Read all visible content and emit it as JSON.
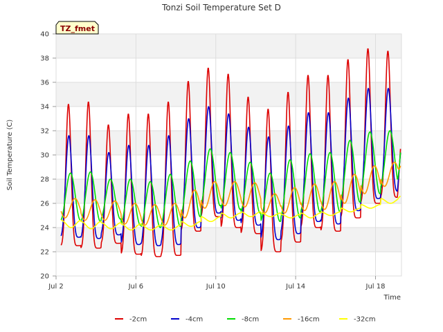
{
  "chart_data": {
    "type": "line",
    "title": "Tonzi Soil Temperature Set D",
    "xlabel": "Time",
    "ylabel": "Soil Temperature (C)",
    "badge": "TZ_fmet",
    "ylim": [
      20,
      40
    ],
    "xlim": [
      2.0,
      19.3
    ],
    "yticks": [
      20,
      22,
      24,
      26,
      28,
      30,
      32,
      34,
      36,
      38,
      40
    ],
    "xticks": [
      {
        "value": 2,
        "label": "Jul 2"
      },
      {
        "value": 6,
        "label": "Jul 6"
      },
      {
        "value": 10,
        "label": "Jul 10"
      },
      {
        "value": 14,
        "label": "Jul 14"
      },
      {
        "value": 18,
        "label": "Jul 18"
      }
    ],
    "grid": true,
    "legend_position": "bottom",
    "day_start": 2.25,
    "series": [
      {
        "name": "-2cm",
        "color": "#dd0000",
        "phase": 0.62,
        "sharp": 3,
        "peaks": [
          34.2,
          34.4,
          32.5,
          33.4,
          33.4,
          34.4,
          36.1,
          37.2,
          36.7,
          34.8,
          33.8,
          35.2,
          36.6,
          36.6,
          37.9,
          38.8,
          38.6
        ],
        "troughs": [
          22.5,
          22.3,
          22.7,
          21.8,
          21.6,
          21.7,
          23.7,
          24.9,
          24.0,
          23.5,
          22.0,
          22.8,
          24.0,
          23.7,
          24.8,
          26.0,
          26.5
        ],
        "end": 30.5
      },
      {
        "name": "-4cm",
        "color": "#0000cc",
        "phase": 0.64,
        "sharp": 2,
        "peaks": [
          31.6,
          31.6,
          30.2,
          30.8,
          30.8,
          31.6,
          33.0,
          34.0,
          33.4,
          32.3,
          31.5,
          32.4,
          33.5,
          33.5,
          34.7,
          35.5,
          35.5
        ],
        "troughs": [
          23.2,
          23.1,
          23.4,
          22.6,
          22.5,
          22.6,
          24.0,
          25.2,
          24.6,
          24.2,
          23.0,
          23.5,
          24.5,
          24.3,
          25.4,
          26.4,
          27.0
        ],
        "end": 30.2
      },
      {
        "name": "-8cm",
        "color": "#00dd00",
        "phase": 0.72,
        "sharp": 1,
        "peaks": [
          28.5,
          28.6,
          28.0,
          28.0,
          27.8,
          28.4,
          29.5,
          30.5,
          30.2,
          29.4,
          28.5,
          29.6,
          30.1,
          30.2,
          31.2,
          31.9,
          32.0
        ],
        "troughs": [
          24.6,
          24.5,
          24.7,
          24.2,
          24.0,
          24.1,
          24.9,
          25.8,
          25.5,
          25.2,
          24.5,
          24.8,
          25.3,
          25.3,
          26.1,
          26.8,
          27.3
        ],
        "end": 30.2
      },
      {
        "name": "-16cm",
        "color": "#ff9900",
        "phase": 0.95,
        "sharp": 1,
        "peaks": [
          26.4,
          26.3,
          26.2,
          26.0,
          25.9,
          26.0,
          27.1,
          27.8,
          27.8,
          27.7,
          26.8,
          27.3,
          27.6,
          27.8,
          28.4,
          29.1,
          29.4
        ],
        "troughs": [
          24.8,
          24.6,
          24.6,
          24.3,
          24.2,
          24.2,
          24.8,
          25.6,
          25.8,
          25.7,
          25.2,
          25.2,
          25.4,
          25.5,
          26.0,
          26.8,
          27.4
        ],
        "end": 29.1
      },
      {
        "name": "-32cm",
        "color": "#ffff00",
        "phase": 0.25,
        "sharp": 1,
        "peaks": [
          24.6,
          24.5,
          24.4,
          24.3,
          24.2,
          24.2,
          24.5,
          24.9,
          25.2,
          25.3,
          25.2,
          25.1,
          25.2,
          25.3,
          25.6,
          25.9,
          26.4
        ],
        "troughs": [
          24.0,
          23.9,
          23.9,
          23.8,
          23.8,
          23.8,
          24.1,
          24.5,
          24.8,
          24.9,
          24.9,
          24.8,
          24.8,
          25.0,
          25.3,
          25.6,
          26.0
        ],
        "end": 26.6
      }
    ]
  }
}
